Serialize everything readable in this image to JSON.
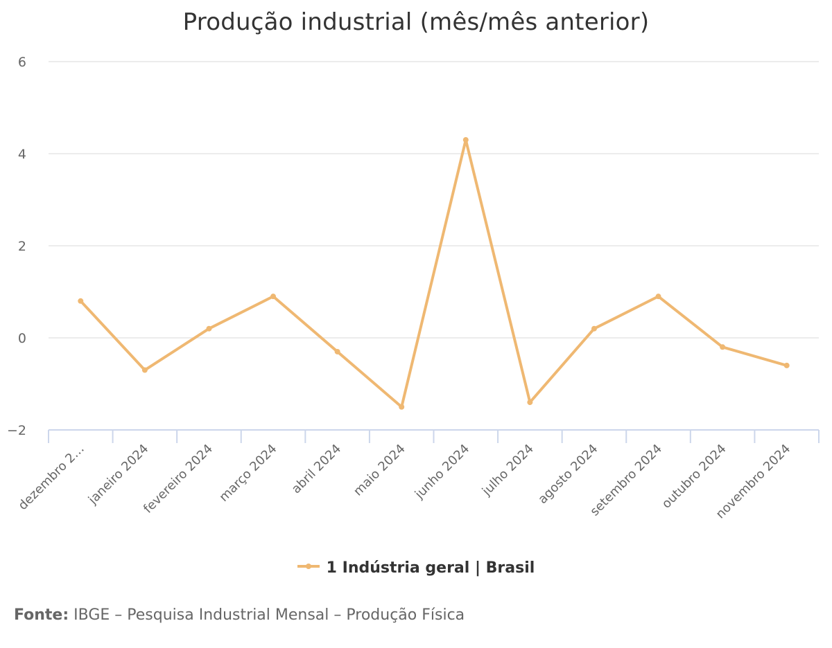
{
  "chart_data": {
    "type": "line",
    "title": "Produção industrial (mês/mês anterior)",
    "xlabel": "",
    "ylabel": "",
    "categories": [
      "dezembro 2…",
      "janeiro 2024",
      "fevereiro 2024",
      "março 2024",
      "abril 2024",
      "maio 2024",
      "junho 2024",
      "julho 2024",
      "agosto 2024",
      "setembro 2024",
      "outubro 2024",
      "novembro 2024"
    ],
    "series": [
      {
        "name": "1 Indústria geral | Brasil",
        "color": "#EFB872",
        "values": [
          0.8,
          -0.7,
          0.2,
          0.9,
          -0.3,
          -1.5,
          4.3,
          -1.4,
          0.2,
          0.9,
          -0.2,
          -0.6
        ]
      }
    ],
    "ylim": [
      -2,
      6
    ],
    "yticks": [
      "6",
      "4",
      "2",
      "0",
      "−2"
    ],
    "ytick_values": [
      6,
      4,
      2,
      0,
      -2
    ],
    "grid": true,
    "legend_position": "bottom"
  },
  "legend": {
    "label": "1 Indústria geral | Brasil"
  },
  "source": {
    "prefix": "Fonte:",
    "text": " IBGE – Pesquisa Industrial Mensal – Produção Física"
  }
}
